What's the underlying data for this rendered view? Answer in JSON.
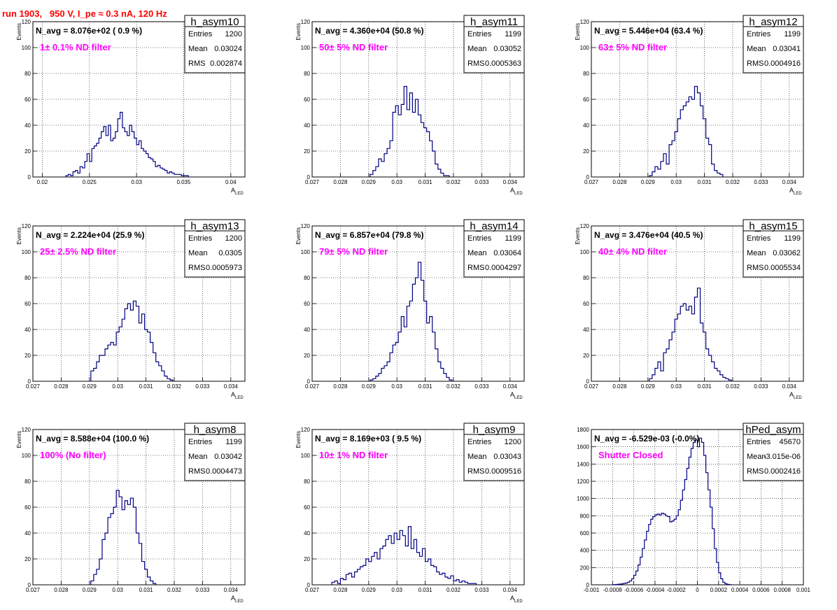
{
  "run_title": "run 1903,   950 V, I_pe ≈ 0.3 nA, 120 Hz",
  "colors": {
    "title": "#ff0000",
    "annotation": "#ff00ff",
    "histogram": "#000080",
    "text": "#000000",
    "grid": "#000000"
  },
  "chart_data": [
    {
      "type": "bar",
      "name": "h_asym10",
      "navg": "N_avg = 8.076e+02 ( 0.9 %)",
      "label": "1± 0.1% ND filter",
      "stats": {
        "Entries": "1200",
        "Mean": "0.03024",
        "RMS": "0.002874"
      },
      "xlabel": "A",
      "xlabel_sub": "LED",
      "ylabel": "Events",
      "xlim": [
        0.019,
        0.0415
      ],
      "ylim": [
        0,
        120
      ],
      "xticks": [
        "0.02",
        "0.025",
        "0.03",
        "0.035",
        "0.04"
      ],
      "xtick_values": [
        0.02,
        0.025,
        0.03,
        0.035,
        0.04
      ],
      "yticks": [
        "20",
        "40",
        "60",
        "80",
        "100",
        "120"
      ],
      "ytick_values": [
        20,
        40,
        60,
        80,
        100,
        120
      ],
      "bin_start": 0.0225,
      "bin_width": 0.00025,
      "values": [
        1,
        2,
        1,
        4,
        5,
        3,
        8,
        7,
        12,
        18,
        12,
        22,
        24,
        26,
        30,
        35,
        39,
        32,
        40,
        28,
        30,
        35,
        45,
        50,
        38,
        35,
        32,
        40,
        35,
        30,
        25,
        28,
        22,
        20,
        18,
        15,
        14,
        12,
        8,
        9,
        7,
        6,
        5,
        3,
        4,
        3,
        2,
        2,
        2,
        1,
        1,
        1
      ]
    },
    {
      "type": "bar",
      "name": "h_asym11",
      "navg": "N_avg = 4.360e+04 (50.8 %)",
      "label": "50± 5% ND filter",
      "stats": {
        "Entries": "1199",
        "Mean": "0.03052",
        "RMS": "0.0005363"
      },
      "xlabel": "A",
      "xlabel_sub": "LED",
      "ylabel": "Events",
      "xlim": [
        0.027,
        0.0345
      ],
      "ylim": [
        0,
        120
      ],
      "xticks": [
        "0.027",
        "0.028",
        "0.029",
        "0.03",
        "0.031",
        "0.032",
        "0.033",
        "0.034"
      ],
      "xtick_values": [
        0.027,
        0.028,
        0.029,
        0.03,
        0.031,
        0.032,
        0.033,
        0.034
      ],
      "yticks": [
        "20",
        "40",
        "60",
        "80",
        "100",
        "120"
      ],
      "ytick_values": [
        20,
        40,
        60,
        80,
        100,
        120
      ],
      "bin_start": 0.02905,
      "bin_width": 0.0001,
      "values": [
        2,
        5,
        8,
        14,
        12,
        18,
        22,
        28,
        50,
        55,
        48,
        56,
        70,
        52,
        65,
        50,
        60,
        48,
        42,
        38,
        35,
        28,
        20,
        10,
        6,
        3,
        1,
        1
      ]
    },
    {
      "type": "bar",
      "name": "h_asym12",
      "navg": "N_avg = 5.446e+04 (63.4 %)",
      "label": "63± 5% ND filter",
      "stats": {
        "Entries": "1199",
        "Mean": "0.03041",
        "RMS": "0.0004916"
      },
      "xlabel": "A",
      "xlabel_sub": "LED",
      "ylabel": "Events",
      "xlim": [
        0.027,
        0.0345
      ],
      "ylim": [
        0,
        120
      ],
      "xticks": [
        "0.027",
        "0.028",
        "0.029",
        "0.03",
        "0.031",
        "0.032",
        "0.033",
        "0.034"
      ],
      "xtick_values": [
        0.027,
        0.028,
        0.029,
        0.03,
        0.031,
        0.032,
        0.033,
        0.034
      ],
      "yticks": [
        "20",
        "40",
        "60",
        "80",
        "100",
        "120"
      ],
      "ytick_values": [
        20,
        40,
        60,
        80,
        100,
        120
      ],
      "bin_start": 0.02905,
      "bin_width": 0.0001,
      "values": [
        1,
        4,
        8,
        6,
        12,
        18,
        10,
        25,
        28,
        35,
        45,
        52,
        55,
        58,
        62,
        60,
        70,
        65,
        55,
        45,
        30,
        25,
        10,
        5,
        3,
        2
      ]
    },
    {
      "type": "bar",
      "name": "h_asym13",
      "navg": "N_avg = 2.224e+04 (25.9 %)",
      "label": "25± 2.5% ND filter",
      "stats": {
        "Entries": "1200",
        "Mean": "0.0305",
        "RMS": "0.0005973"
      },
      "xlabel": "A",
      "xlabel_sub": "LED",
      "ylabel": "Events",
      "xlim": [
        0.027,
        0.0345
      ],
      "ylim": [
        0,
        120
      ],
      "xticks": [
        "0.027",
        "0.028",
        "0.029",
        "0.03",
        "0.031",
        "0.032",
        "0.033",
        "0.034"
      ],
      "xtick_values": [
        0.027,
        0.028,
        0.029,
        0.03,
        0.031,
        0.032,
        0.033,
        0.034
      ],
      "yticks": [
        "20",
        "40",
        "60",
        "80",
        "100",
        "120"
      ],
      "ytick_values": [
        20,
        40,
        60,
        80,
        100,
        120
      ],
      "bin_start": 0.02905,
      "bin_width": 0.0001,
      "values": [
        8,
        10,
        15,
        20,
        20,
        25,
        28,
        30,
        28,
        38,
        42,
        48,
        56,
        60,
        55,
        62,
        58,
        45,
        52,
        40,
        38,
        30,
        22,
        15,
        12,
        8,
        4,
        2,
        1
      ]
    },
    {
      "type": "bar",
      "name": "h_asym14",
      "navg": "N_avg = 6.857e+04 (79.8 %)",
      "label": "79± 5% ND filter",
      "stats": {
        "Entries": "1199",
        "Mean": "0.03064",
        "RMS": "0.0004297"
      },
      "xlabel": "A",
      "xlabel_sub": "LED",
      "ylabel": "Events",
      "xlim": [
        0.027,
        0.0345
      ],
      "ylim": [
        0,
        120
      ],
      "xticks": [
        "0.027",
        "0.028",
        "0.029",
        "0.03",
        "0.031",
        "0.032",
        "0.033",
        "0.034"
      ],
      "xtick_values": [
        0.027,
        0.028,
        0.029,
        0.03,
        0.031,
        0.032,
        0.033,
        0.034
      ],
      "yticks": [
        "20",
        "40",
        "60",
        "80",
        "100",
        "120"
      ],
      "ytick_values": [
        20,
        40,
        60,
        80,
        100,
        120
      ],
      "bin_start": 0.02905,
      "bin_width": 0.0001,
      "values": [
        1,
        2,
        4,
        6,
        10,
        12,
        15,
        22,
        28,
        30,
        38,
        50,
        42,
        58,
        62,
        75,
        80,
        92,
        78,
        62,
        45,
        50,
        38,
        25,
        15,
        10,
        6,
        3,
        1
      ]
    },
    {
      "type": "bar",
      "name": "h_asym15",
      "navg": "N_avg = 3.476e+04 (40.5 %)",
      "label": "40± 4% ND filter",
      "stats": {
        "Entries": "1199",
        "Mean": "0.03062",
        "RMS": "0.0005534"
      },
      "xlabel": "A",
      "xlabel_sub": "LED",
      "ylabel": "Events",
      "xlim": [
        0.027,
        0.0345
      ],
      "ylim": [
        0,
        120
      ],
      "xticks": [
        "0.027",
        "0.028",
        "0.029",
        "0.03",
        "0.031",
        "0.032",
        "0.033",
        "0.034"
      ],
      "xtick_values": [
        0.027,
        0.028,
        0.029,
        0.03,
        0.031,
        0.032,
        0.033,
        0.034
      ],
      "yticks": [
        "20",
        "40",
        "60",
        "80",
        "100",
        "120"
      ],
      "ytick_values": [
        20,
        40,
        60,
        80,
        100,
        120
      ],
      "bin_start": 0.02905,
      "bin_width": 0.0001,
      "values": [
        2,
        5,
        10,
        15,
        8,
        22,
        25,
        32,
        38,
        48,
        52,
        58,
        60,
        55,
        58,
        52,
        65,
        72,
        45,
        38,
        25,
        20,
        15,
        10,
        8,
        5,
        3,
        2,
        1
      ]
    },
    {
      "type": "bar",
      "name": "h_asym8",
      "navg": "N_avg = 8.588e+04 (100.0 %)",
      "label": "100% (No filter)",
      "stats": {
        "Entries": "1199",
        "Mean": "0.03042",
        "RMS": "0.0004473"
      },
      "xlabel": "A",
      "xlabel_sub": "LED",
      "ylabel": "Events",
      "xlim": [
        0.027,
        0.0345
      ],
      "ylim": [
        0,
        120
      ],
      "xticks": [
        "0.027",
        "0.028",
        "0.029",
        "0.03",
        "0.031",
        "0.032",
        "0.033",
        "0.034"
      ],
      "xtick_values": [
        0.027,
        0.028,
        0.029,
        0.03,
        0.031,
        0.032,
        0.033,
        0.034
      ],
      "yticks": [
        "20",
        "40",
        "60",
        "80",
        "100",
        "120"
      ],
      "ytick_values": [
        20,
        40,
        60,
        80,
        100,
        120
      ],
      "bin_start": 0.02905,
      "bin_width": 0.0001,
      "values": [
        3,
        8,
        12,
        20,
        35,
        40,
        52,
        55,
        60,
        73,
        68,
        58,
        65,
        62,
        67,
        60,
        40,
        32,
        18,
        12,
        6,
        3,
        1
      ]
    },
    {
      "type": "bar",
      "name": "h_asym9",
      "navg": "N_avg = 8.169e+03 ( 9.5 %)",
      "label": "10± 1% ND filter",
      "stats": {
        "Entries": "1200",
        "Mean": "0.03043",
        "RMS": "0.0009516"
      },
      "xlabel": "A",
      "xlabel_sub": "LED",
      "ylabel": "Events",
      "xlim": [
        0.027,
        0.0345
      ],
      "ylim": [
        0,
        120
      ],
      "xticks": [
        "0.027",
        "0.028",
        "0.029",
        "0.03",
        "0.031",
        "0.032",
        "0.033",
        "0.034"
      ],
      "xtick_values": [
        0.027,
        0.028,
        0.029,
        0.03,
        0.031,
        0.032,
        0.033,
        0.034
      ],
      "yticks": [
        "20",
        "40",
        "60",
        "80",
        "100",
        "120"
      ],
      "ytick_values": [
        20,
        40,
        60,
        80,
        100,
        120
      ],
      "bin_start": 0.0277,
      "bin_width": 0.0001,
      "values": [
        2,
        3,
        1,
        5,
        4,
        8,
        9,
        6,
        10,
        12,
        14,
        15,
        20,
        18,
        22,
        25,
        20,
        28,
        30,
        35,
        38,
        32,
        40,
        35,
        42,
        38,
        30,
        45,
        28,
        35,
        25,
        22,
        28,
        18,
        20,
        15,
        14,
        10,
        8,
        9,
        6,
        5,
        7,
        3,
        4,
        2,
        3,
        2,
        1,
        1,
        1
      ]
    },
    {
      "type": "bar",
      "name": "hPed_asym",
      "navg": "N_avg = -6.529e-03 (-0.0%)",
      "label": "Shutter Closed",
      "stats": {
        "Entries": "45670",
        "Mean": "-3.015e-06",
        "RMS": "0.0002416"
      },
      "xlabel": "",
      "xlabel_sub": "",
      "ylabel": "",
      "xlim": [
        -0.001,
        0.001
      ],
      "ylim": [
        0,
        1800
      ],
      "xticks": [
        "-0.001",
        "-0.0008",
        "-0.0006",
        "-0.0004",
        "-0.0002",
        "0",
        "0.0002",
        "0.0004",
        "0.0006",
        "0.0008",
        "0.001"
      ],
      "xtick_values": [
        -0.001,
        -0.0008,
        -0.0006,
        -0.0004,
        -0.0002,
        0,
        0.0002,
        0.0004,
        0.0006,
        0.0008,
        0.001
      ],
      "yticks": [
        "200",
        "400",
        "600",
        "800",
        "1000",
        "1200",
        "1400",
        "1600",
        "1800"
      ],
      "ytick_values": [
        200,
        400,
        600,
        800,
        1000,
        1200,
        1400,
        1600,
        1800
      ],
      "bin_start": -0.0008,
      "bin_width": 2e-05,
      "values": [
        2,
        3,
        5,
        8,
        10,
        15,
        20,
        30,
        45,
        70,
        110,
        160,
        230,
        320,
        420,
        520,
        620,
        700,
        760,
        790,
        810,
        820,
        810,
        830,
        820,
        800,
        790,
        730,
        740,
        760,
        800,
        870,
        980,
        1100,
        1220,
        1350,
        1480,
        1580,
        1650,
        1680,
        1600,
        1700,
        1650,
        1500,
        1300,
        1100,
        900,
        650,
        420,
        260,
        140,
        70,
        30,
        12,
        5,
        2
      ]
    }
  ]
}
